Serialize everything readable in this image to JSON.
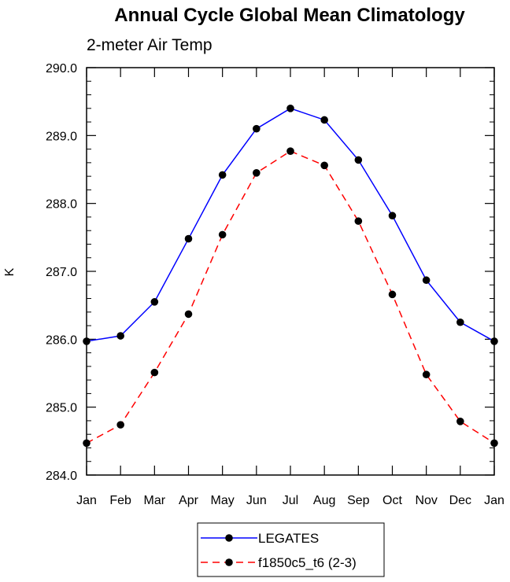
{
  "chart_data": {
    "type": "line",
    "title": "Annual Cycle Global Mean Climatology",
    "subtitle": "2-meter Air Temp",
    "xlabel": "",
    "ylabel": "K",
    "categories": [
      "Jan",
      "Feb",
      "Mar",
      "Apr",
      "May",
      "Jun",
      "Jul",
      "Aug",
      "Sep",
      "Oct",
      "Nov",
      "Dec",
      "Jan"
    ],
    "ylim": [
      284.0,
      290.0
    ],
    "yticks": [
      "284.0",
      "285.0",
      "286.0",
      "287.0",
      "288.0",
      "289.0",
      "290.0"
    ],
    "series": [
      {
        "name": "LEGATES",
        "color": "#0000ff",
        "dash": "solid",
        "marker": "circle",
        "values": [
          285.97,
          286.05,
          286.55,
          287.48,
          288.42,
          289.1,
          289.4,
          289.23,
          288.64,
          287.82,
          286.87,
          286.25,
          285.97
        ]
      },
      {
        "name": "f1850c5_t6 (2-3)",
        "color": "#ff0000",
        "dash": "dashed",
        "marker": "circle",
        "values": [
          284.47,
          284.74,
          285.51,
          286.37,
          287.54,
          288.45,
          288.77,
          288.56,
          287.74,
          286.66,
          285.48,
          284.79,
          284.47
        ]
      }
    ],
    "legend_position": "bottom-center"
  }
}
